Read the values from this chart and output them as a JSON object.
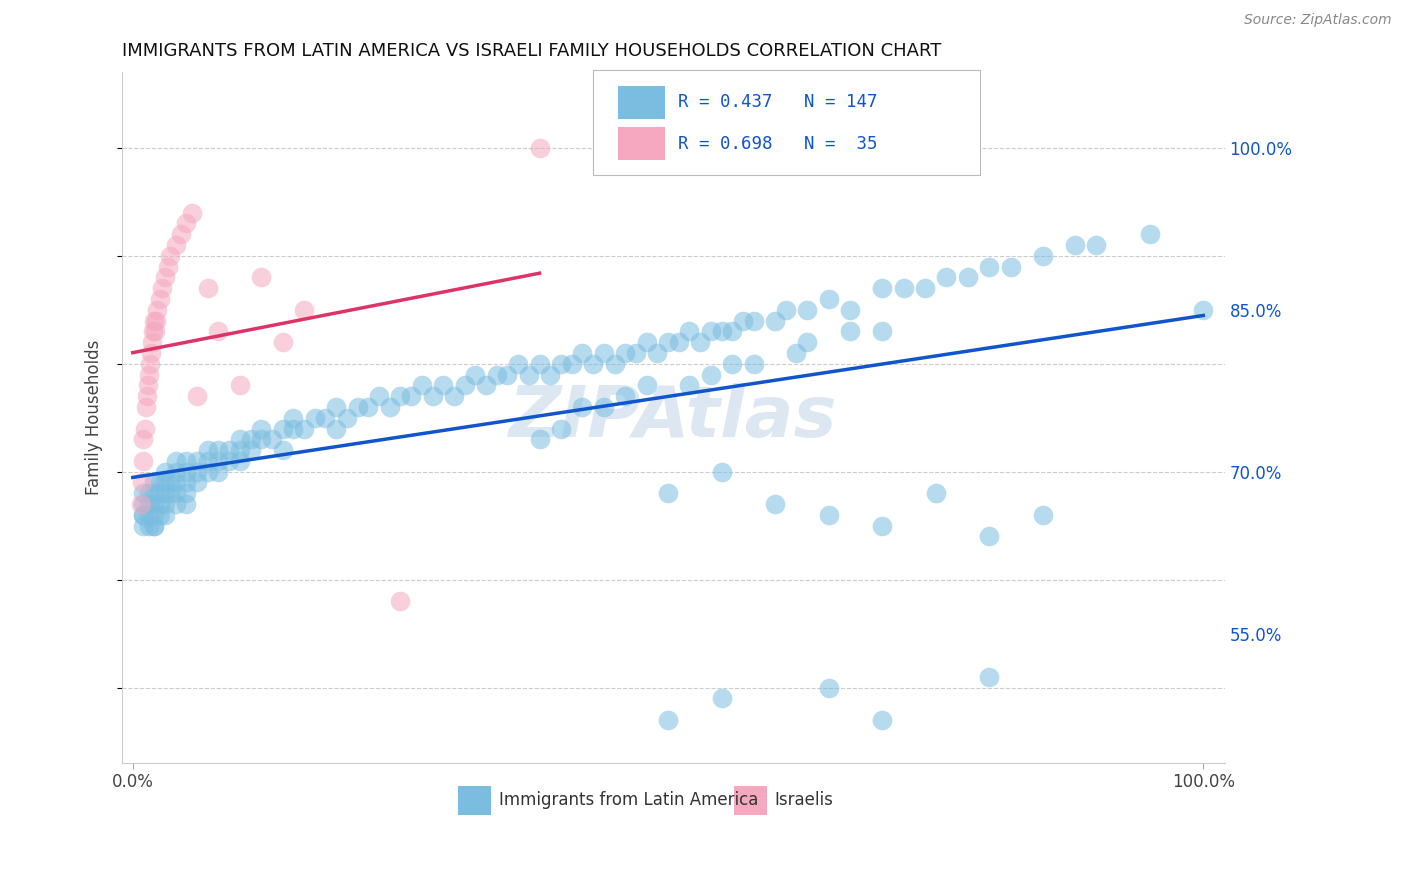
{
  "title": "IMMIGRANTS FROM LATIN AMERICA VS ISRAELI FAMILY HOUSEHOLDS CORRELATION CHART",
  "source": "Source: ZipAtlas.com",
  "ylabel": "Family Households",
  "legend_label_1": "Immigrants from Latin America",
  "legend_label_2": "Israelis",
  "r1": 0.437,
  "n1": 147,
  "r2": 0.698,
  "n2": 35,
  "color_blue": "#7bbde0",
  "color_pink": "#f5a8c0",
  "line_color_blue": "#1155cc",
  "line_color_pink": "#dd3366",
  "watermark": "ZIPAtlas",
  "blue_x": [
    0.01,
    0.01,
    0.01,
    0.01,
    0.01,
    0.015,
    0.015,
    0.015,
    0.015,
    0.02,
    0.02,
    0.02,
    0.02,
    0.02,
    0.02,
    0.025,
    0.025,
    0.025,
    0.025,
    0.03,
    0.03,
    0.03,
    0.03,
    0.03,
    0.035,
    0.035,
    0.04,
    0.04,
    0.04,
    0.04,
    0.04,
    0.05,
    0.05,
    0.05,
    0.05,
    0.05,
    0.06,
    0.06,
    0.06,
    0.07,
    0.07,
    0.07,
    0.08,
    0.08,
    0.08,
    0.09,
    0.09,
    0.1,
    0.1,
    0.1,
    0.11,
    0.11,
    0.12,
    0.12,
    0.13,
    0.14,
    0.14,
    0.15,
    0.15,
    0.16,
    0.17,
    0.18,
    0.19,
    0.19,
    0.2,
    0.21,
    0.22,
    0.23,
    0.24,
    0.25,
    0.26,
    0.27,
    0.28,
    0.29,
    0.3,
    0.31,
    0.32,
    0.33,
    0.34,
    0.35,
    0.36,
    0.37,
    0.38,
    0.39,
    0.4,
    0.41,
    0.42,
    0.43,
    0.44,
    0.45,
    0.46,
    0.47,
    0.48,
    0.49,
    0.5,
    0.51,
    0.52,
    0.53,
    0.54,
    0.55,
    0.56,
    0.57,
    0.58,
    0.6,
    0.61,
    0.63,
    0.65,
    0.67,
    0.7,
    0.72,
    0.74,
    0.76,
    0.78,
    0.8,
    0.82,
    0.85,
    0.88,
    0.9,
    0.95,
    1.0,
    0.38,
    0.4,
    0.42,
    0.44,
    0.46,
    0.48,
    0.52,
    0.54,
    0.56,
    0.58,
    0.62,
    0.63,
    0.67,
    0.7,
    0.5,
    0.55,
    0.6,
    0.65,
    0.7,
    0.75,
    0.8,
    0.85,
    0.5,
    0.55,
    0.65,
    0.7,
    0.8
  ],
  "blue_y": [
    0.66,
    0.67,
    0.68,
    0.65,
    0.66,
    0.67,
    0.66,
    0.68,
    0.65,
    0.67,
    0.66,
    0.65,
    0.68,
    0.69,
    0.65,
    0.68,
    0.67,
    0.69,
    0.66,
    0.68,
    0.67,
    0.69,
    0.7,
    0.66,
    0.69,
    0.68,
    0.69,
    0.7,
    0.68,
    0.67,
    0.71,
    0.7,
    0.69,
    0.71,
    0.68,
    0.67,
    0.7,
    0.71,
    0.69,
    0.71,
    0.7,
    0.72,
    0.71,
    0.72,
    0.7,
    0.72,
    0.71,
    0.72,
    0.73,
    0.71,
    0.72,
    0.73,
    0.73,
    0.74,
    0.73,
    0.74,
    0.72,
    0.74,
    0.75,
    0.74,
    0.75,
    0.75,
    0.76,
    0.74,
    0.75,
    0.76,
    0.76,
    0.77,
    0.76,
    0.77,
    0.77,
    0.78,
    0.77,
    0.78,
    0.77,
    0.78,
    0.79,
    0.78,
    0.79,
    0.79,
    0.8,
    0.79,
    0.8,
    0.79,
    0.8,
    0.8,
    0.81,
    0.8,
    0.81,
    0.8,
    0.81,
    0.81,
    0.82,
    0.81,
    0.82,
    0.82,
    0.83,
    0.82,
    0.83,
    0.83,
    0.83,
    0.84,
    0.84,
    0.84,
    0.85,
    0.85,
    0.86,
    0.85,
    0.87,
    0.87,
    0.87,
    0.88,
    0.88,
    0.89,
    0.89,
    0.9,
    0.91,
    0.91,
    0.92,
    0.85,
    0.73,
    0.74,
    0.76,
    0.76,
    0.77,
    0.78,
    0.78,
    0.79,
    0.8,
    0.8,
    0.81,
    0.82,
    0.83,
    0.83,
    0.68,
    0.7,
    0.67,
    0.66,
    0.65,
    0.68,
    0.64,
    0.66,
    0.47,
    0.49,
    0.5,
    0.47,
    0.51
  ],
  "pink_x": [
    0.008,
    0.009,
    0.01,
    0.01,
    0.011,
    0.012,
    0.013,
    0.014,
    0.015,
    0.016,
    0.017,
    0.018,
    0.019,
    0.02,
    0.021,
    0.022,
    0.023,
    0.025,
    0.027,
    0.03,
    0.033,
    0.035,
    0.04,
    0.045,
    0.05,
    0.055,
    0.06,
    0.07,
    0.08,
    0.1,
    0.12,
    0.14,
    0.16,
    0.25,
    0.38
  ],
  "pink_y": [
    0.67,
    0.69,
    0.71,
    0.73,
    0.74,
    0.76,
    0.77,
    0.78,
    0.79,
    0.8,
    0.81,
    0.82,
    0.83,
    0.84,
    0.83,
    0.84,
    0.85,
    0.86,
    0.87,
    0.88,
    0.89,
    0.9,
    0.91,
    0.92,
    0.93,
    0.94,
    0.77,
    0.87,
    0.83,
    0.78,
    0.88,
    0.82,
    0.85,
    0.58,
    1.0
  ]
}
